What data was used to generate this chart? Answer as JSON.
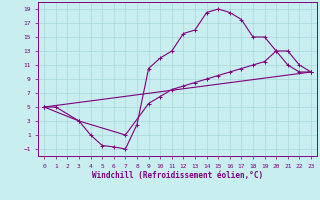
{
  "xlabel": "Windchill (Refroidissement éolien,°C)",
  "bg_color": "#c8eef0",
  "line_color": "#800080",
  "grid_color": "#a8d8d8",
  "xlim": [
    -0.5,
    23.5
  ],
  "ylim": [
    -2,
    20
  ],
  "xticks": [
    0,
    1,
    2,
    3,
    4,
    5,
    6,
    7,
    8,
    9,
    10,
    11,
    12,
    13,
    14,
    15,
    16,
    17,
    18,
    19,
    20,
    21,
    22,
    23
  ],
  "yticks": [
    -1,
    1,
    3,
    5,
    7,
    9,
    11,
    13,
    15,
    17,
    19
  ],
  "line1_x": [
    0,
    1,
    3,
    4,
    5,
    6,
    7,
    8,
    9,
    10,
    11,
    12,
    13,
    14,
    15,
    16,
    17,
    18,
    19,
    20,
    21,
    22,
    23
  ],
  "line1_y": [
    5,
    5,
    3,
    1,
    -0.5,
    -0.7,
    -1,
    2.5,
    10.5,
    12,
    13,
    15.5,
    16,
    18.5,
    19,
    18.5,
    17.5,
    15,
    15,
    13,
    11,
    10,
    10
  ],
  "line2_x": [
    0,
    3,
    7,
    9,
    10,
    11,
    12,
    13,
    14,
    15,
    16,
    17,
    18,
    19,
    20,
    21,
    22,
    23
  ],
  "line2_y": [
    5,
    3,
    1,
    5.5,
    6.5,
    7.5,
    8,
    8.5,
    9,
    9.5,
    10,
    10.5,
    11,
    11.5,
    13,
    13,
    11,
    10
  ],
  "line3_x": [
    0,
    23
  ],
  "line3_y": [
    5,
    10
  ],
  "marker": "+"
}
